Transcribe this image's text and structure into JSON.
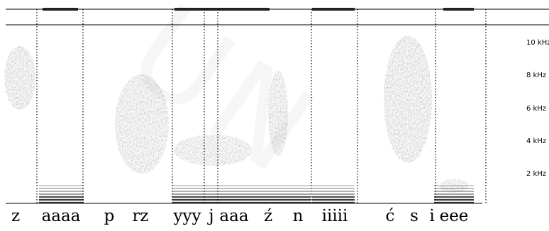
{
  "frequency_labels": [
    "10 kHz",
    "8 kHz",
    "6 kHz",
    "4 kHz",
    "2 kHz"
  ],
  "segment_labels": [
    "z",
    "aaaa",
    "p",
    "rz",
    "yyy",
    "j",
    "aaa",
    "ź",
    "n",
    "iiiii",
    "ć",
    "s",
    "i",
    "eee"
  ],
  "watermark": "UN",
  "colors": {
    "spectrogram": "#4a4a4a",
    "lines": "#000000",
    "background": "#ffffff"
  }
}
